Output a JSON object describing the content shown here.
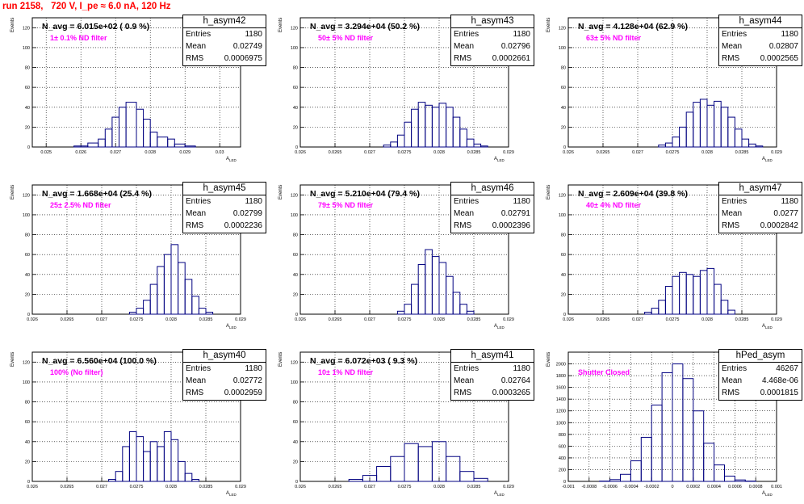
{
  "title": "run 2158,   720 V, I_pe ≈ 6.0 nA, 120 Hz",
  "colors": {
    "title": "#ff0000",
    "hist": "#000080",
    "filter_text": "#ff00ff",
    "grid": "#000000"
  },
  "panels": [
    {
      "stat_name": "h_asym42",
      "entries": "1180",
      "mean": "0.02749",
      "rms": "0.0006975",
      "navg": "N_avg = 6.015e+02 ( 0.9 %)",
      "filter": "1± 0.1% ND filter",
      "ylabel": "Events",
      "xlabel": "A",
      "xlabel_sub": "LED"
    },
    {
      "stat_name": "h_asym43",
      "entries": "1180",
      "mean": "0.02796",
      "rms": "0.0002661",
      "navg": "N_avg = 3.294e+04 (50.2 %)",
      "filter": "50± 5% ND filter",
      "ylabel": "Events",
      "xlabel": "A",
      "xlabel_sub": "LED"
    },
    {
      "stat_name": "h_asym44",
      "entries": "1180",
      "mean": "0.02807",
      "rms": "0.0002565",
      "navg": "N_avg = 4.128e+04 (62.9 %)",
      "filter": "63± 5% ND filter",
      "ylabel": "Events",
      "xlabel": "A",
      "xlabel_sub": "LED"
    },
    {
      "stat_name": "h_asym45",
      "entries": "1180",
      "mean": "0.02799",
      "rms": "0.0002236",
      "navg": "N_avg = 1.668e+04 (25.4 %)",
      "filter": "25± 2.5% ND filter",
      "ylabel": "Events",
      "xlabel": "A",
      "xlabel_sub": "LED"
    },
    {
      "stat_name": "h_asym46",
      "entries": "1180",
      "mean": "0.02791",
      "rms": "0.0002396",
      "navg": "N_avg = 5.210e+04 (79.4 %)",
      "filter": "79± 5% ND filter",
      "ylabel": "Events",
      "xlabel": "A",
      "xlabel_sub": "LED"
    },
    {
      "stat_name": "h_asym47",
      "entries": "1180",
      "mean": "0.0277",
      "rms": "0.0002842",
      "navg": "N_avg = 2.609e+04 (39.8 %)",
      "filter": "40± 4% ND filter",
      "ylabel": "Events",
      "xlabel": "A",
      "xlabel_sub": "LED"
    },
    {
      "stat_name": "h_asym40",
      "entries": "1180",
      "mean": "0.02772",
      "rms": "0.0002959",
      "navg": "N_avg = 6.560e+04 (100.0 %)",
      "filter": "100% (No filter)",
      "ylabel": "Events",
      "xlabel": "A",
      "xlabel_sub": "LED"
    },
    {
      "stat_name": "h_asym41",
      "entries": "1180",
      "mean": "0.02764",
      "rms": "0.0003265",
      "navg": "N_avg = 6.072e+03 ( 9.3 %)",
      "filter": "10± 1% ND filter",
      "ylabel": "Events",
      "xlabel": "A",
      "xlabel_sub": "LED"
    },
    {
      "stat_name": "hPed_asym",
      "entries": "46267",
      "mean": "4.468e-06",
      "rms": "0.0001815",
      "navg": "",
      "filter": "Shutter Closed",
      "ylabel": "Events",
      "xlabel": "A",
      "xlabel_sub": "LED"
    }
  ],
  "stat_labels": {
    "entries": "Entries",
    "mean": "Mean",
    "rms": "RMS"
  },
  "chart_data": [
    {
      "type": "bar",
      "title": "h_asym42",
      "xlabel": "A LED",
      "ylabel": "Events",
      "xlim": [
        0.0246,
        0.0306
      ],
      "ylim": [
        0,
        130
      ],
      "grid": true,
      "xticks": [
        "0.025",
        "0.026",
        "0.027",
        "0.028",
        "0.029",
        "0.03"
      ],
      "xtick_values": [
        0.025,
        0.026,
        0.027,
        0.028,
        0.029,
        0.03
      ],
      "yticks": [
        "0",
        "20",
        "40",
        "60",
        "80",
        "100",
        "120"
      ],
      "bins": [
        [
          0.0258,
          0.0262,
          1
        ],
        [
          0.0262,
          0.0265,
          4
        ],
        [
          0.0265,
          0.0267,
          8
        ],
        [
          0.0267,
          0.0269,
          18
        ],
        [
          0.0269,
          0.0271,
          30
        ],
        [
          0.0271,
          0.0273,
          40
        ],
        [
          0.0273,
          0.0276,
          45
        ],
        [
          0.0276,
          0.0278,
          38
        ],
        [
          0.0278,
          0.028,
          28
        ],
        [
          0.028,
          0.0282,
          15
        ],
        [
          0.0282,
          0.0285,
          10
        ],
        [
          0.0285,
          0.0287,
          8
        ],
        [
          0.0287,
          0.029,
          3
        ],
        [
          0.029,
          0.0293,
          1
        ]
      ]
    },
    {
      "type": "bar",
      "title": "h_asym43",
      "xlabel": "A LED",
      "ylabel": "Events",
      "xlim": [
        0.026,
        0.029
      ],
      "ylim": [
        0,
        130
      ],
      "grid": true,
      "xticks": [
        "0.026",
        "0.0265",
        "0.027",
        "0.0275",
        "0.028",
        "0.0285",
        "0.029"
      ],
      "xtick_values": [
        0.026,
        0.0265,
        0.027,
        0.0275,
        0.028,
        0.0285,
        0.029
      ],
      "yticks": [
        "0",
        "20",
        "40",
        "60",
        "80",
        "100",
        "120"
      ],
      "bins": [
        [
          0.0272,
          0.0273,
          2
        ],
        [
          0.0273,
          0.0274,
          5
        ],
        [
          0.0274,
          0.0275,
          12
        ],
        [
          0.0275,
          0.0276,
          25
        ],
        [
          0.0276,
          0.0277,
          38
        ],
        [
          0.0277,
          0.0278,
          45
        ],
        [
          0.0278,
          0.0279,
          42
        ],
        [
          0.0279,
          0.028,
          40
        ],
        [
          0.028,
          0.0281,
          44
        ],
        [
          0.0281,
          0.0282,
          40
        ],
        [
          0.0282,
          0.0283,
          30
        ],
        [
          0.0283,
          0.0284,
          18
        ],
        [
          0.0284,
          0.0285,
          8
        ],
        [
          0.0285,
          0.0286,
          3
        ],
        [
          0.0286,
          0.0287,
          1
        ]
      ]
    },
    {
      "type": "bar",
      "title": "h_asym44",
      "xlabel": "A LED",
      "ylabel": "Events",
      "xlim": [
        0.026,
        0.029
      ],
      "ylim": [
        0,
        130
      ],
      "grid": true,
      "xticks": [
        "0.026",
        "0.0265",
        "0.027",
        "0.0275",
        "0.028",
        "0.0285",
        "0.029"
      ],
      "xtick_values": [
        0.026,
        0.0265,
        0.027,
        0.0275,
        0.028,
        0.0285,
        0.029
      ],
      "yticks": [
        "0",
        "20",
        "40",
        "60",
        "80",
        "100",
        "120"
      ],
      "bins": [
        [
          0.0273,
          0.0274,
          2
        ],
        [
          0.0274,
          0.0275,
          4
        ],
        [
          0.0275,
          0.0276,
          10
        ],
        [
          0.0276,
          0.0277,
          20
        ],
        [
          0.0277,
          0.0278,
          35
        ],
        [
          0.0278,
          0.0279,
          45
        ],
        [
          0.0279,
          0.028,
          48
        ],
        [
          0.028,
          0.0281,
          42
        ],
        [
          0.0281,
          0.0282,
          46
        ],
        [
          0.0282,
          0.0283,
          40
        ],
        [
          0.0283,
          0.0284,
          30
        ],
        [
          0.0284,
          0.0285,
          18
        ],
        [
          0.0285,
          0.0286,
          8
        ],
        [
          0.0286,
          0.0287,
          3
        ],
        [
          0.0287,
          0.0288,
          1
        ]
      ]
    },
    {
      "type": "bar",
      "title": "h_asym45",
      "xlabel": "A LED",
      "ylabel": "Events",
      "xlim": [
        0.026,
        0.029
      ],
      "ylim": [
        0,
        130
      ],
      "grid": true,
      "xticks": [
        "0.026",
        "0.0265",
        "0.027",
        "0.0275",
        "0.028",
        "0.0285",
        "0.029"
      ],
      "xtick_values": [
        0.026,
        0.0265,
        0.027,
        0.0275,
        0.028,
        0.0285,
        0.029
      ],
      "yticks": [
        "0",
        "20",
        "40",
        "60",
        "80",
        "100",
        "120"
      ],
      "bins": [
        [
          0.0274,
          0.0275,
          2
        ],
        [
          0.0275,
          0.0276,
          6
        ],
        [
          0.0276,
          0.0277,
          14
        ],
        [
          0.0277,
          0.0278,
          30
        ],
        [
          0.0278,
          0.0279,
          48
        ],
        [
          0.0279,
          0.028,
          60
        ],
        [
          0.028,
          0.0281,
          70
        ],
        [
          0.0281,
          0.0282,
          52
        ],
        [
          0.0282,
          0.0283,
          35
        ],
        [
          0.0283,
          0.0284,
          18
        ],
        [
          0.0284,
          0.0285,
          6
        ],
        [
          0.0285,
          0.0286,
          2
        ]
      ]
    },
    {
      "type": "bar",
      "title": "h_asym46",
      "xlabel": "A LED",
      "ylabel": "Events",
      "xlim": [
        0.026,
        0.029
      ],
      "ylim": [
        0,
        130
      ],
      "grid": true,
      "xticks": [
        "0.026",
        "0.0265",
        "0.027",
        "0.0275",
        "0.028",
        "0.0285",
        "0.029"
      ],
      "xtick_values": [
        0.026,
        0.0265,
        0.027,
        0.0275,
        0.028,
        0.0285,
        0.029
      ],
      "yticks": [
        "0",
        "20",
        "40",
        "60",
        "80",
        "100",
        "120"
      ],
      "bins": [
        [
          0.0274,
          0.0275,
          3
        ],
        [
          0.0275,
          0.0276,
          10
        ],
        [
          0.0276,
          0.0277,
          30
        ],
        [
          0.0277,
          0.0278,
          50
        ],
        [
          0.0278,
          0.0279,
          65
        ],
        [
          0.0279,
          0.028,
          58
        ],
        [
          0.028,
          0.0281,
          52
        ],
        [
          0.0281,
          0.0282,
          38
        ],
        [
          0.0282,
          0.0283,
          22
        ],
        [
          0.0283,
          0.0284,
          10
        ],
        [
          0.0284,
          0.0285,
          3
        ]
      ]
    },
    {
      "type": "bar",
      "title": "h_asym47",
      "xlabel": "A LED",
      "ylabel": "Events",
      "xlim": [
        0.026,
        0.029
      ],
      "ylim": [
        0,
        130
      ],
      "grid": true,
      "xticks": [
        "0.026",
        "0.0265",
        "0.027",
        "0.0275",
        "0.028",
        "0.0285",
        "0.029"
      ],
      "xtick_values": [
        0.026,
        0.0265,
        0.027,
        0.0275,
        0.028,
        0.0285,
        0.029
      ],
      "yticks": [
        "0",
        "20",
        "40",
        "60",
        "80",
        "100",
        "120"
      ],
      "bins": [
        [
          0.0271,
          0.0272,
          2
        ],
        [
          0.0272,
          0.0273,
          6
        ],
        [
          0.0273,
          0.0274,
          14
        ],
        [
          0.0274,
          0.0275,
          28
        ],
        [
          0.0275,
          0.0276,
          38
        ],
        [
          0.0276,
          0.0277,
          42
        ],
        [
          0.0277,
          0.0278,
          40
        ],
        [
          0.0278,
          0.0279,
          38
        ],
        [
          0.0279,
          0.028,
          44
        ],
        [
          0.028,
          0.0281,
          46
        ],
        [
          0.0281,
          0.0282,
          30
        ],
        [
          0.0282,
          0.0283,
          14
        ],
        [
          0.0283,
          0.0284,
          4
        ]
      ]
    },
    {
      "type": "bar",
      "title": "h_asym40",
      "xlabel": "A LED",
      "ylabel": "Events",
      "xlim": [
        0.026,
        0.029
      ],
      "ylim": [
        0,
        130
      ],
      "grid": true,
      "xticks": [
        "0.026",
        "0.0265",
        "0.027",
        "0.0275",
        "0.028",
        "0.0285",
        "0.029"
      ],
      "xtick_values": [
        0.026,
        0.0265,
        0.027,
        0.0275,
        0.028,
        0.0285,
        0.029
      ],
      "yticks": [
        "0",
        "20",
        "40",
        "60",
        "80",
        "100",
        "120"
      ],
      "bins": [
        [
          0.0271,
          0.0272,
          2
        ],
        [
          0.0272,
          0.0273,
          10
        ],
        [
          0.0273,
          0.0274,
          35
        ],
        [
          0.0274,
          0.0275,
          50
        ],
        [
          0.0275,
          0.0276,
          45
        ],
        [
          0.0276,
          0.0277,
          30
        ],
        [
          0.0277,
          0.0278,
          40
        ],
        [
          0.0278,
          0.0279,
          35
        ],
        [
          0.0279,
          0.028,
          50
        ],
        [
          0.028,
          0.0281,
          42
        ],
        [
          0.0281,
          0.0282,
          20
        ],
        [
          0.0282,
          0.0283,
          8
        ],
        [
          0.0283,
          0.0284,
          2
        ]
      ]
    },
    {
      "type": "bar",
      "title": "h_asym41",
      "xlabel": "A LED",
      "ylabel": "Events",
      "xlim": [
        0.026,
        0.029
      ],
      "ylim": [
        0,
        130
      ],
      "grid": true,
      "xticks": [
        "0.026",
        "0.0265",
        "0.027",
        "0.0275",
        "0.028",
        "0.0285",
        "0.029"
      ],
      "xtick_values": [
        0.026,
        0.0265,
        0.027,
        0.0275,
        0.028,
        0.0285,
        0.029
      ],
      "yticks": [
        "0",
        "20",
        "40",
        "60",
        "80",
        "100",
        "120"
      ],
      "bins": [
        [
          0.0267,
          0.0269,
          2
        ],
        [
          0.0269,
          0.0271,
          6
        ],
        [
          0.0271,
          0.0273,
          15
        ],
        [
          0.0273,
          0.0275,
          25
        ],
        [
          0.0275,
          0.0277,
          38
        ],
        [
          0.0277,
          0.0279,
          35
        ],
        [
          0.0279,
          0.0281,
          40
        ],
        [
          0.0281,
          0.0283,
          25
        ],
        [
          0.0283,
          0.0285,
          10
        ],
        [
          0.0285,
          0.0287,
          3
        ]
      ]
    },
    {
      "type": "bar",
      "title": "hPed_asym",
      "xlabel": "A LED",
      "ylabel": "Events",
      "xlim": [
        -0.001,
        0.001
      ],
      "ylim": [
        0,
        2200
      ],
      "grid": true,
      "xticks": [
        "-0.001",
        "-0.0008",
        "-0.0006",
        "-0.0004",
        "-0.0002",
        "0",
        "0.0002",
        "0.0004",
        "0.0006",
        "0.0008",
        "0.001"
      ],
      "xtick_values": [
        -0.001,
        -0.0008,
        -0.0006,
        -0.0004,
        -0.0002,
        0,
        0.0002,
        0.0004,
        0.0006,
        0.0008,
        0.001
      ],
      "yticks": [
        "0",
        "200",
        "400",
        "600",
        "800",
        "1000",
        "1200",
        "1400",
        "1600",
        "1800",
        "2000"
      ],
      "bins": [
        [
          -0.0007,
          -0.0006,
          5
        ],
        [
          -0.0006,
          -0.0005,
          30
        ],
        [
          -0.0005,
          -0.0004,
          120
        ],
        [
          -0.0004,
          -0.0003,
          350
        ],
        [
          -0.0003,
          -0.0002,
          750
        ],
        [
          -0.0002,
          -0.0001,
          1300
        ],
        [
          -0.0001,
          0,
          1850
        ],
        [
          0,
          0.0001,
          2000
        ],
        [
          0.0001,
          0.0002,
          1750
        ],
        [
          0.0002,
          0.0003,
          1200
        ],
        [
          0.0003,
          0.0004,
          650
        ],
        [
          0.0004,
          0.0005,
          280
        ],
        [
          0.0005,
          0.0006,
          90
        ],
        [
          0.0006,
          0.0007,
          25
        ],
        [
          0.0007,
          0.0008,
          5
        ]
      ]
    }
  ]
}
